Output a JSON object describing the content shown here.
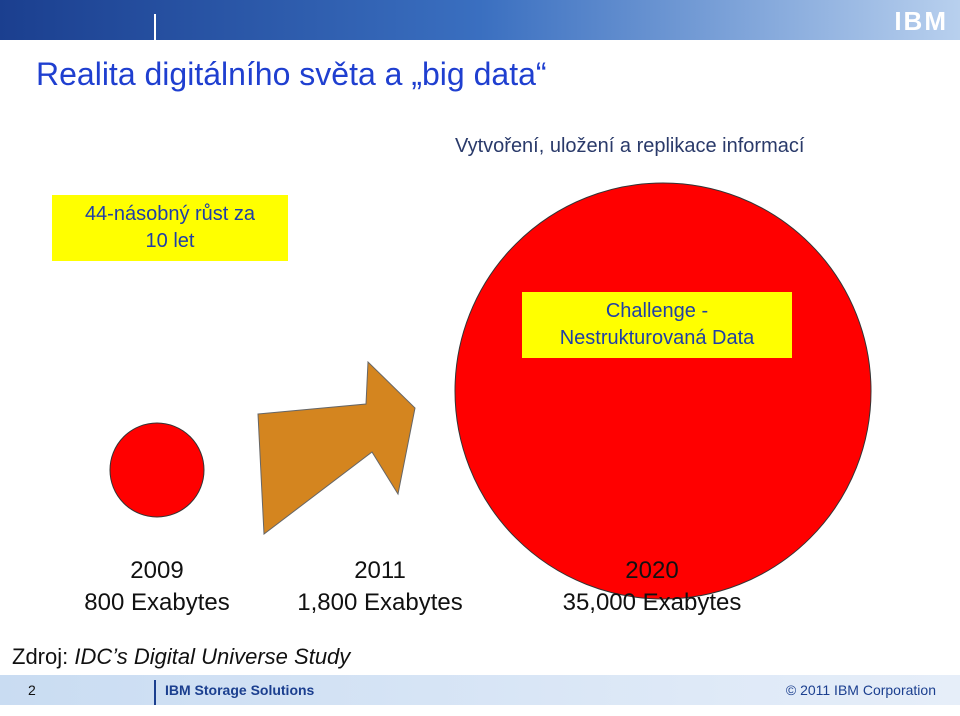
{
  "header": {
    "logo": "IBM"
  },
  "title": "Realita digitálního světa a „big data“",
  "subtitle": "Vytvoření, uložení a replikace informací",
  "callouts": [
    {
      "lines": [
        "44-násobný růst za",
        "10 let"
      ]
    },
    {
      "lines": [
        "Challenge -",
        "Nestrukturovaná Data"
      ]
    }
  ],
  "milestones": [
    {
      "year": "2009",
      "amount": "800 Exabytes"
    },
    {
      "year": "2011",
      "amount": "1,800 Exabytes"
    },
    {
      "year": "2020",
      "amount": "35,000 Exabytes"
    }
  ],
  "source": {
    "label": "Zdroj:",
    "text": "IDC’s Digital Universe Study"
  },
  "footer": {
    "page": "2",
    "unit": "IBM Storage Solutions",
    "copyright": "© 2011 IBM Corporation"
  }
}
